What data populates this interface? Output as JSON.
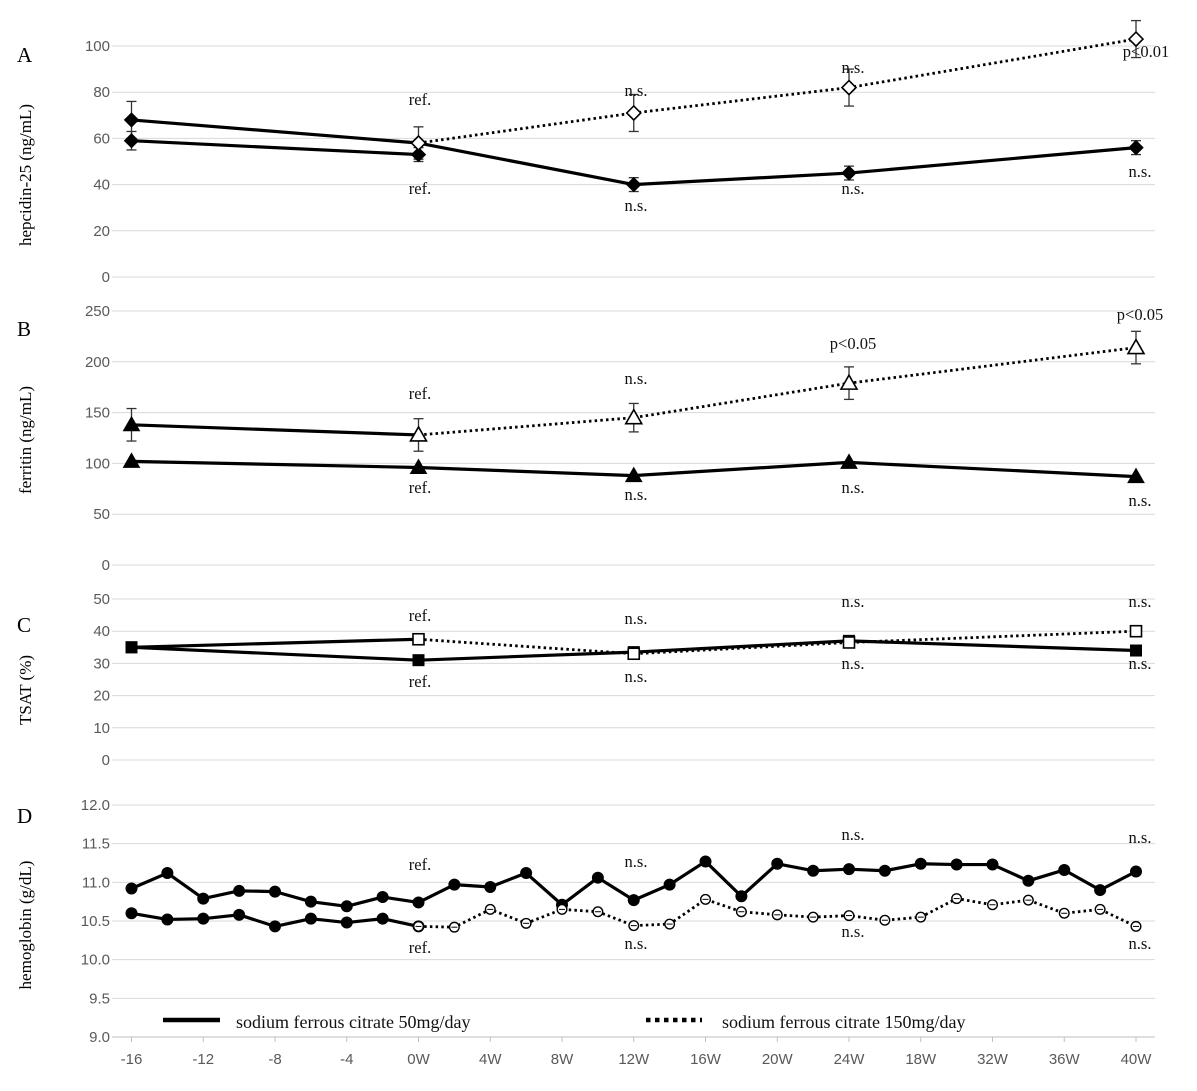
{
  "legend": {
    "solid_label": "sodium ferrous citrate 50mg/day",
    "dotted_label": "sodium ferrous citrate 150mg/day"
  },
  "x_tick_labels": [
    "-16",
    "-12",
    "-8",
    "-4",
    "0W",
    "4W",
    "8W",
    "12W",
    "16W",
    "20W",
    "24W",
    "18W",
    "32W",
    "36W",
    "40W"
  ],
  "chart_data": [
    {
      "panel": "A",
      "type": "line",
      "ylabel": "hepcidin-25 (ng/mL)",
      "ylim": [
        0,
        100
      ],
      "yticks": [
        "0",
        "20",
        "40",
        "60",
        "80",
        "100"
      ],
      "x_positions": [
        "-16",
        "-12",
        "-8",
        "-4",
        "0W",
        "4W",
        "8W",
        "12W",
        "16W",
        "20W",
        "24W",
        "18W",
        "32W",
        "36W",
        "40W"
      ],
      "series": [
        {
          "style": "solid",
          "marker": "filled-diamond",
          "points": [
            [
              "-16",
              68
            ],
            [
              "0W",
              58
            ],
            [
              "12W",
              40
            ],
            [
              "24W",
              45
            ],
            [
              "40W",
              56
            ]
          ],
          "errors": [
            8,
            7,
            3,
            3,
            3
          ]
        },
        {
          "style": "solid",
          "marker": "filled-diamond",
          "points": [
            [
              "-16",
              59
            ],
            [
              "0W",
              53
            ]
          ],
          "errors": [
            4,
            3
          ]
        },
        {
          "style": "dotted",
          "marker": "open-diamond",
          "points": [
            [
              "0W",
              58
            ],
            [
              "12W",
              71
            ],
            [
              "24W",
              82
            ],
            [
              "40W",
              103
            ]
          ],
          "errors": [
            0,
            8,
            8,
            8
          ]
        }
      ],
      "annotations": [
        {
          "x": "0W",
          "text": "ref.",
          "pos": "above"
        },
        {
          "x": "0W",
          "text": "ref.",
          "pos": "below"
        },
        {
          "x": "12W",
          "text": "n.s.",
          "pos": "above"
        },
        {
          "x": "12W",
          "text": "n.s.",
          "pos": "below"
        },
        {
          "x": "24W",
          "text": "n.s.",
          "pos": "above"
        },
        {
          "x": "24W",
          "text": "n.s.",
          "pos": "below"
        },
        {
          "x": "40W",
          "text": "p<0.01",
          "pos": "above"
        },
        {
          "x": "40W",
          "text": "n.s.",
          "pos": "below"
        }
      ]
    },
    {
      "panel": "B",
      "type": "line",
      "ylabel": "ferritin (ng/mL)",
      "ylim": [
        0,
        250
      ],
      "yticks": [
        "0",
        "50",
        "100",
        "150",
        "200",
        "250"
      ],
      "series": [
        {
          "style": "solid",
          "marker": "filled-triangle",
          "points": [
            [
              "-16",
              138
            ],
            [
              "0W",
              128
            ]
          ],
          "errors": [
            16,
            16
          ]
        },
        {
          "style": "solid",
          "marker": "filled-triangle",
          "points": [
            [
              "-16",
              102
            ],
            [
              "0W",
              96
            ],
            [
              "12W",
              88
            ],
            [
              "24W",
              101
            ],
            [
              "40W",
              87
            ]
          ],
          "errors": [
            0,
            0,
            0,
            0,
            0
          ]
        },
        {
          "style": "dotted",
          "marker": "open-triangle",
          "points": [
            [
              "0W",
              128
            ],
            [
              "12W",
              145
            ],
            [
              "24W",
              179
            ],
            [
              "40W",
              214
            ]
          ],
          "errors": [
            0,
            14,
            16,
            16
          ]
        }
      ],
      "annotations": [
        {
          "x": "0W",
          "text": "ref.",
          "pos": "above"
        },
        {
          "x": "0W",
          "text": "ref.",
          "pos": "below"
        },
        {
          "x": "12W",
          "text": "n.s.",
          "pos": "above"
        },
        {
          "x": "12W",
          "text": "n.s.",
          "pos": "below"
        },
        {
          "x": "24W",
          "text": "p<0.05",
          "pos": "above"
        },
        {
          "x": "24W",
          "text": "n.s.",
          "pos": "below"
        },
        {
          "x": "40W",
          "text": "p<0.05",
          "pos": "above"
        },
        {
          "x": "40W",
          "text": "n.s.",
          "pos": "below"
        }
      ]
    },
    {
      "panel": "C",
      "type": "line",
      "ylabel": "TSAT (%)",
      "ylim": [
        0,
        50
      ],
      "yticks": [
        "0",
        "10",
        "20",
        "30",
        "40",
        "50"
      ],
      "series": [
        {
          "style": "solid",
          "marker": "filled-square",
          "points": [
            [
              "-16",
              35
            ],
            [
              "0W",
              37.5
            ]
          ]
        },
        {
          "style": "solid",
          "marker": "filled-square",
          "points": [
            [
              "-16",
              35
            ],
            [
              "0W",
              31
            ],
            [
              "12W",
              33.5
            ],
            [
              "24W",
              37
            ],
            [
              "40W",
              34
            ]
          ]
        },
        {
          "style": "dotted",
          "marker": "open-square",
          "points": [
            [
              "0W",
              37.5
            ],
            [
              "12W",
              33
            ],
            [
              "24W",
              36.5
            ],
            [
              "40W",
              40
            ]
          ]
        }
      ],
      "annotations": [
        {
          "x": "0W",
          "text": "ref.",
          "pos": "above"
        },
        {
          "x": "0W",
          "text": "ref.",
          "pos": "below"
        },
        {
          "x": "12W",
          "text": "n.s.",
          "pos": "above"
        },
        {
          "x": "12W",
          "text": "n.s.",
          "pos": "below"
        },
        {
          "x": "24W",
          "text": "n.s.",
          "pos": "above"
        },
        {
          "x": "24W",
          "text": "n.s.",
          "pos": "below"
        },
        {
          "x": "40W",
          "text": "n.s.",
          "pos": "above"
        },
        {
          "x": "40W",
          "text": "n.s.",
          "pos": "below"
        }
      ]
    },
    {
      "panel": "D",
      "type": "line",
      "ylabel": "hemoglobin (g/dL)",
      "ylim": [
        9.0,
        12.0
      ],
      "yticks": [
        "9.0",
        "9.5",
        "10.0",
        "10.5",
        "11.0",
        "11.5",
        "12.0"
      ],
      "x_index": [
        -16,
        -14,
        -12,
        -10,
        -8,
        -6,
        -4,
        -2,
        0,
        2,
        4,
        6,
        8,
        10,
        12,
        14,
        16,
        18,
        20,
        22,
        24,
        26,
        28,
        30,
        32,
        34,
        36,
        38,
        40
      ],
      "series": [
        {
          "style": "solid",
          "marker": "filled-circle",
          "start": -16,
          "step": 2,
          "values": [
            10.92,
            11.12,
            10.79,
            10.89,
            10.88,
            10.75,
            10.69,
            10.81,
            10.74,
            10.97,
            10.94,
            11.12,
            10.71,
            11.06,
            10.77,
            10.97,
            11.27,
            10.82,
            11.24,
            11.15,
            11.17,
            11.15,
            11.24,
            11.23,
            11.23,
            11.02,
            11.16,
            10.9,
            11.14
          ]
        },
        {
          "style": "solid",
          "marker": "filled-circle",
          "start": -16,
          "step": 2,
          "values": [
            10.6,
            10.52,
            10.53,
            10.58,
            10.43,
            10.53,
            10.48,
            10.53,
            10.43
          ]
        },
        {
          "style": "dotted",
          "marker": "open-circle",
          "start": 0,
          "step": 2,
          "values": [
            10.43,
            10.42,
            10.65,
            10.47,
            10.65,
            10.62,
            10.44,
            10.46,
            10.78,
            10.62,
            10.58,
            10.55,
            10.57,
            10.51,
            10.55,
            10.79,
            10.71,
            10.77,
            10.6,
            10.65,
            10.43
          ]
        }
      ],
      "annotations": [
        {
          "x": "0W",
          "text": "ref.",
          "pos": "above"
        },
        {
          "x": "0W",
          "text": "ref.",
          "pos": "below"
        },
        {
          "x": "12W",
          "text": "n.s.",
          "pos": "above"
        },
        {
          "x": "12W",
          "text": "n.s.",
          "pos": "below"
        },
        {
          "x": "24W",
          "text": "n.s.",
          "pos": "above"
        },
        {
          "x": "24W",
          "text": "n.s.",
          "pos": "below"
        },
        {
          "x": "40W",
          "text": "n.s.",
          "pos": "above"
        },
        {
          "x": "40W",
          "text": "n.s.",
          "pos": "below"
        }
      ]
    }
  ]
}
